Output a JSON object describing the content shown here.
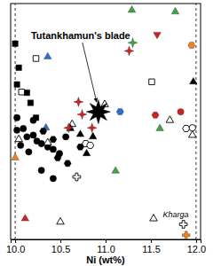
{
  "chart_data": {
    "type": "scatter",
    "x_label": "Ni (wt%)",
    "xlim": [
      9.95,
      12.05
    ],
    "xticks": [
      {
        "value": 10,
        "label": "10.0"
      },
      {
        "value": 10.5,
        "label": "10.5"
      },
      {
        "value": 11,
        "label": "11.0"
      },
      {
        "value": 11.5,
        "label": "11.5"
      },
      {
        "value": 12,
        "label": "12.0"
      }
    ],
    "ylim": [
      0,
      100
    ],
    "tick_labels": "x",
    "vlines": [
      10,
      12
    ],
    "series": [
      {
        "color": "#000000",
        "marker": "square",
        "x": [
          10.0,
          10.04,
          10.02,
          10.13,
          10.17,
          10.23
        ],
        "values": [
          83.0,
          72.8,
          65.7,
          62.2,
          57.9,
          51.6
        ]
      },
      {
        "color": "#000000",
        "marker": "square-open",
        "x": [
          10.23,
          10.07,
          11.51
        ],
        "values": [
          76.7,
          62.5,
          66.8
        ]
      },
      {
        "color": "#2b6fd6",
        "marker": "triangle",
        "x": [
          10.36,
          10.34
        ],
        "values": [
          77.4,
          47.3
        ]
      },
      {
        "color": "#000000",
        "marker": "circle",
        "x": [
          10.02,
          10.02,
          10.09,
          10.13,
          10.2,
          10.24,
          10.29,
          10.36,
          10.42,
          10.49,
          10.06,
          10.15,
          10.29,
          10.42,
          10.56,
          10.2
        ],
        "values": [
          51.6,
          46.3,
          47.0,
          43.5,
          44.2,
          41.7,
          40.6,
          39.2,
          38.2,
          36.4,
          39.9,
          37.1,
          29.3,
          25.8,
          43.5,
          50.5
        ]
      },
      {
        "color": "#000000",
        "marker": "hexagon",
        "x": [
          10.31,
          10.42,
          10.47,
          10.58,
          10.72
        ],
        "values": [
          45.9,
          42.4,
          34.6,
          32.2,
          39.2
        ]
      },
      {
        "color": "#000000",
        "marker": "hexagon-open",
        "x": [
          10.78,
          10.83,
          11.89
        ],
        "values": [
          40.6,
          39.9,
          47.0
        ]
      },
      {
        "color": "#000000",
        "marker": "triangle-open",
        "x": [
          10.04,
          10.36,
          10.63,
          10.99,
          11.71,
          11.96,
          11.53,
          10.5
        ],
        "values": [
          42.4,
          41.0,
          48.8,
          57.2,
          50.5,
          44.2,
          8.8,
          7.4
        ]
      },
      {
        "color": "#000000",
        "marker": "triangle",
        "x": [
          10.61,
          10.72,
          10.86,
          10.79,
          11.97
        ],
        "values": [
          47.0,
          44.5,
          43.5,
          36.4,
          66.8
        ]
      },
      {
        "color": "#d62020",
        "marker": "star4",
        "x": [
          10.7,
          10.74,
          10.59,
          10.85,
          11.26
        ],
        "values": [
          58.3,
          53.0,
          47.3,
          47.3,
          79.9
        ]
      },
      {
        "color": "#3aa845",
        "marker": "star4",
        "x": [
          11.3
        ],
        "values": [
          83.4
        ]
      },
      {
        "color": "#3aa845",
        "marker": "triangle",
        "x": [
          11.29,
          11.77,
          11.6,
          11.11
        ],
        "values": [
          97.2,
          96.5,
          47.0,
          29.0
        ]
      },
      {
        "color": "#d62020",
        "marker": "triangle-down",
        "x": [
          11.57
        ],
        "values": [
          86.9
        ]
      },
      {
        "color": "#f0821e",
        "marker": "hexagon",
        "x": [
          11.95
        ],
        "values": [
          82.3
        ]
      },
      {
        "color": "#2b6fd6",
        "marker": "hexagon",
        "x": [
          11.16
        ],
        "values": [
          54.1
        ]
      },
      {
        "color": "#d62020",
        "marker": "circle",
        "x": [
          11.83
        ],
        "values": [
          54.1
        ]
      },
      {
        "color": "#d62020",
        "marker": "hexagon",
        "x": [
          11.55
        ],
        "values": [
          52.7
        ]
      },
      {
        "color": "#f0821e",
        "marker": "triangle",
        "x": [
          10.0
        ],
        "values": [
          34.6
        ]
      },
      {
        "color": "#d62020",
        "marker": "triangle",
        "x": [
          10.11
        ],
        "values": [
          8.8
        ]
      },
      {
        "color": "#000000",
        "marker": "plus-open",
        "x": [
          10.68,
          11.86
        ],
        "values": [
          26.5,
          6.4
        ]
      },
      {
        "color": "#f0821e",
        "marker": "plus",
        "x": [
          11.89
        ],
        "values": [
          1.8
        ]
      },
      {
        "color": "#000000",
        "marker": "circle-open",
        "x": [
          11.96
        ],
        "values": [
          47.3
        ]
      },
      {
        "color": "#000000",
        "marker": "star8",
        "x": [
          10.92
        ],
        "values": [
          54.1
        ]
      }
    ],
    "annotations": [
      {
        "text": "Tutankhamun's blade",
        "x": 10.92,
        "y": 54.1
      },
      {
        "text": "Kharga",
        "x": 11.86,
        "y": 6.4
      }
    ]
  }
}
